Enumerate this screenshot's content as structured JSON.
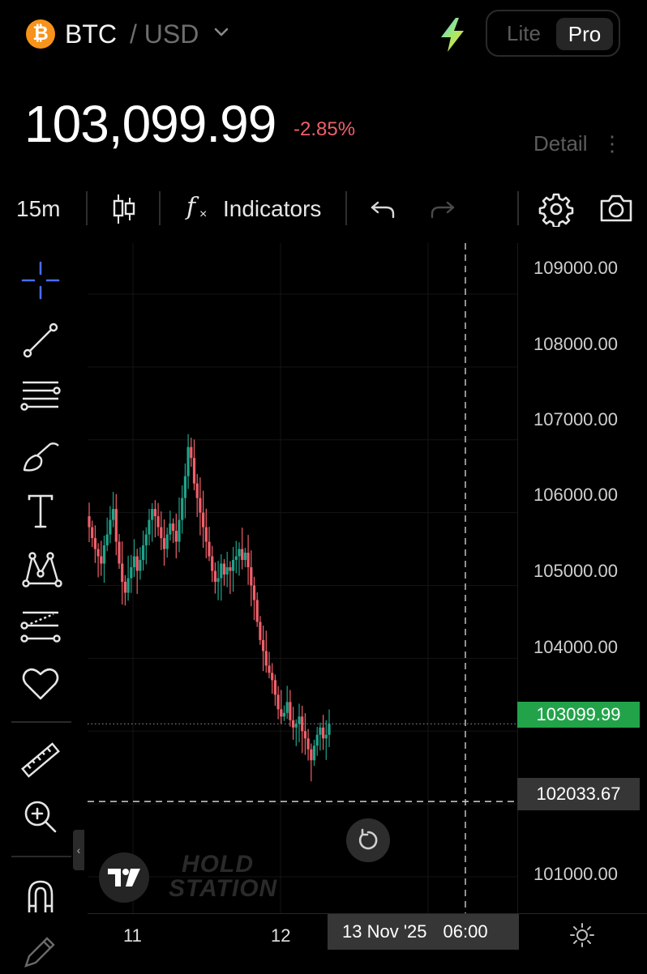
{
  "header": {
    "coin_icon": "₿",
    "base": "BTC",
    "quote": "/ USD",
    "modes": [
      "Lite",
      "Pro"
    ],
    "active_mode": "Pro"
  },
  "price": {
    "value": "103,099.99",
    "change": "-2.85%",
    "detail_label": "Detail",
    "detail_menu": "⋮"
  },
  "toolbar": {
    "interval": "15m",
    "indicators_label": "Indicators",
    "fx": "f"
  },
  "chart": {
    "price_labels": [
      "109000.00",
      "108000.00",
      "107000.00",
      "106000.00",
      "105000.00",
      "104000.00",
      "101000.00"
    ],
    "current_price_badge": "103099.99",
    "crosshair_price": "102033.67",
    "time_labels": [
      "11",
      "12"
    ],
    "crosshair_date": "13 Nov '25",
    "crosshair_time": "06:00",
    "watermark_line1": "HOLD",
    "watermark_line2": "STATION"
  },
  "chart_data": {
    "type": "candlestick",
    "interval": "15m",
    "ylim": [
      100500,
      109700
    ],
    "current_price": 103099.99,
    "crosshair_price": 102033.67,
    "x_ticks": [
      "11",
      "12"
    ],
    "y_ticks": [
      101000,
      104000,
      105000,
      106000,
      107000,
      108000,
      109000
    ],
    "close_path": [
      105800,
      105650,
      105500,
      105400,
      105300,
      105550,
      105700,
      105900,
      106050,
      105600,
      105300,
      105050,
      104900,
      105100,
      105250,
      105400,
      105200,
      105350,
      105550,
      105700,
      105900,
      106050,
      105950,
      105800,
      105650,
      105500,
      105700,
      105850,
      105750,
      105600,
      105900,
      106200,
      106500,
      106900,
      106750,
      106400,
      106200,
      106000,
      105800,
      105600,
      105400,
      105200,
      105050,
      105100,
      105300,
      105150,
      105250,
      105200,
      105350,
      105400,
      105500,
      105350,
      105450,
      105250,
      105000,
      104800,
      104500,
      104250,
      104100,
      103900,
      103800,
      103700,
      103500,
      103300,
      103200,
      103250,
      103400,
      103150,
      103050,
      103100,
      103200,
      103000,
      102900,
      102750,
      102600,
      102800,
      102950,
      103050,
      102900,
      102950,
      103099.99
    ]
  },
  "colors": {
    "up": "#1fa38a",
    "down": "#f0606a",
    "current_badge": "#22a34a",
    "crosshair_badge": "#363636",
    "drawing_tool_active": "#4a6cf7"
  },
  "icons": {
    "left_tools": [
      "crosshair-icon",
      "trend-line-icon",
      "fib-lines-icon",
      "brush-icon",
      "text-icon",
      "pattern-icon",
      "forecast-icon",
      "heart-icon",
      "ruler-icon",
      "zoom-in-icon",
      "magnet-icon",
      "pencil-icon"
    ]
  }
}
